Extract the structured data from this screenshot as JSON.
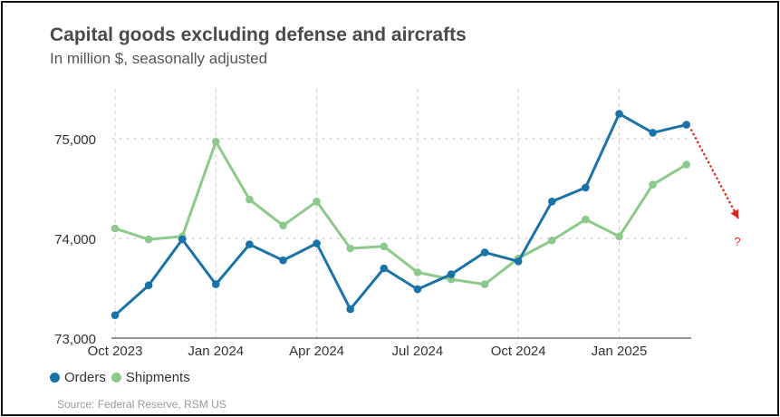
{
  "header": {
    "title": "Capital goods excluding defense and aircrafts",
    "subtitle": "In million $, seasonally adjusted"
  },
  "legend": {
    "orders_label": "Orders",
    "shipments_label": "Shipments"
  },
  "source": "Source: Federal Reserve, RSM US",
  "colors": {
    "orders": "#1a73a8",
    "shipments": "#8cc98a",
    "arrow": "#e0241f",
    "grid": "#cccccc"
  },
  "chart_data": {
    "type": "line",
    "title": "Capital goods excluding defense and aircrafts",
    "subtitle": "In million $, seasonally adjusted",
    "xlabel": "",
    "ylabel": "",
    "x_labels": [
      "Oct 2023",
      "Jan 2024",
      "Apr 2024",
      "Jul 2024",
      "Oct 2024",
      "Jan 2025"
    ],
    "x_label_indices": [
      0,
      3,
      6,
      9,
      12,
      15
    ],
    "ylim": [
      73000,
      75500
    ],
    "y_ticks": [
      73000,
      74000,
      75000
    ],
    "y_tick_labels": [
      "73,000",
      "74,000",
      "75,000"
    ],
    "series": [
      {
        "name": "Orders",
        "values": [
          73230,
          73530,
          73990,
          73540,
          73940,
          73780,
          73950,
          73290,
          73700,
          73490,
          73640,
          73860,
          73770,
          74370,
          74510,
          75250,
          75060,
          75140
        ]
      },
      {
        "name": "Shipments",
        "values": [
          74100,
          73990,
          74020,
          74970,
          74390,
          74130,
          74370,
          73900,
          73920,
          73660,
          73590,
          73540,
          73800,
          73980,
          74190,
          74020,
          74540,
          74740
        ]
      }
    ],
    "annotation": {
      "text": "?",
      "description": "projected decline"
    },
    "legend_position": "bottom-left",
    "grid": true
  }
}
